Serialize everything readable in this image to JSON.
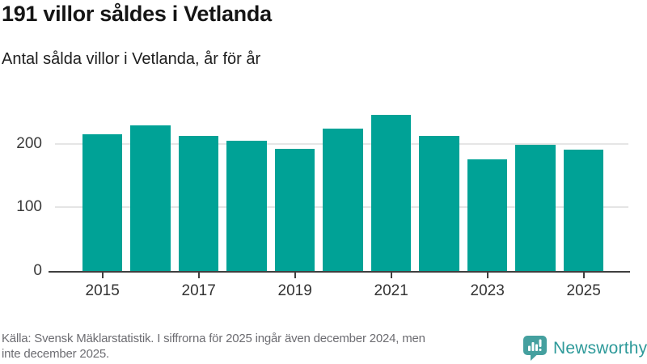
{
  "header": {
    "title": "191 villor såldes i Vetlanda",
    "subtitle": "Antal sålda villor i Vetlanda, år för år"
  },
  "chart_data": {
    "type": "bar",
    "title": "191 villor såldes i Vetlanda",
    "subtitle": "Antal sålda villor i Vetlanda, år för år",
    "categories": [
      "2015",
      "2016",
      "2017",
      "2018",
      "2019",
      "2020",
      "2021",
      "2022",
      "2023",
      "2024",
      "2025"
    ],
    "values": [
      214,
      228,
      212,
      204,
      192,
      223,
      245,
      212,
      175,
      198,
      191
    ],
    "x_tick_labels": [
      "2015",
      "2017",
      "2019",
      "2021",
      "2023",
      "2025"
    ],
    "y_ticks": [
      0,
      100,
      200
    ],
    "ylim": [
      0,
      260
    ],
    "xlabel": "",
    "ylabel": "",
    "grid": "horizontal-light",
    "legend": "none",
    "bar_color": "#00a296"
  },
  "footer": {
    "source_lines": [
      "Källa: Svensk Mäklarstatistik. I siffrorna för 2025 ingår även december 2024, men",
      "inte december 2025."
    ],
    "brand": {
      "name": "Newsworthy",
      "icon": "newsworthy-speech-bubble-barchart-icon",
      "color": "#2e9a9a"
    }
  }
}
